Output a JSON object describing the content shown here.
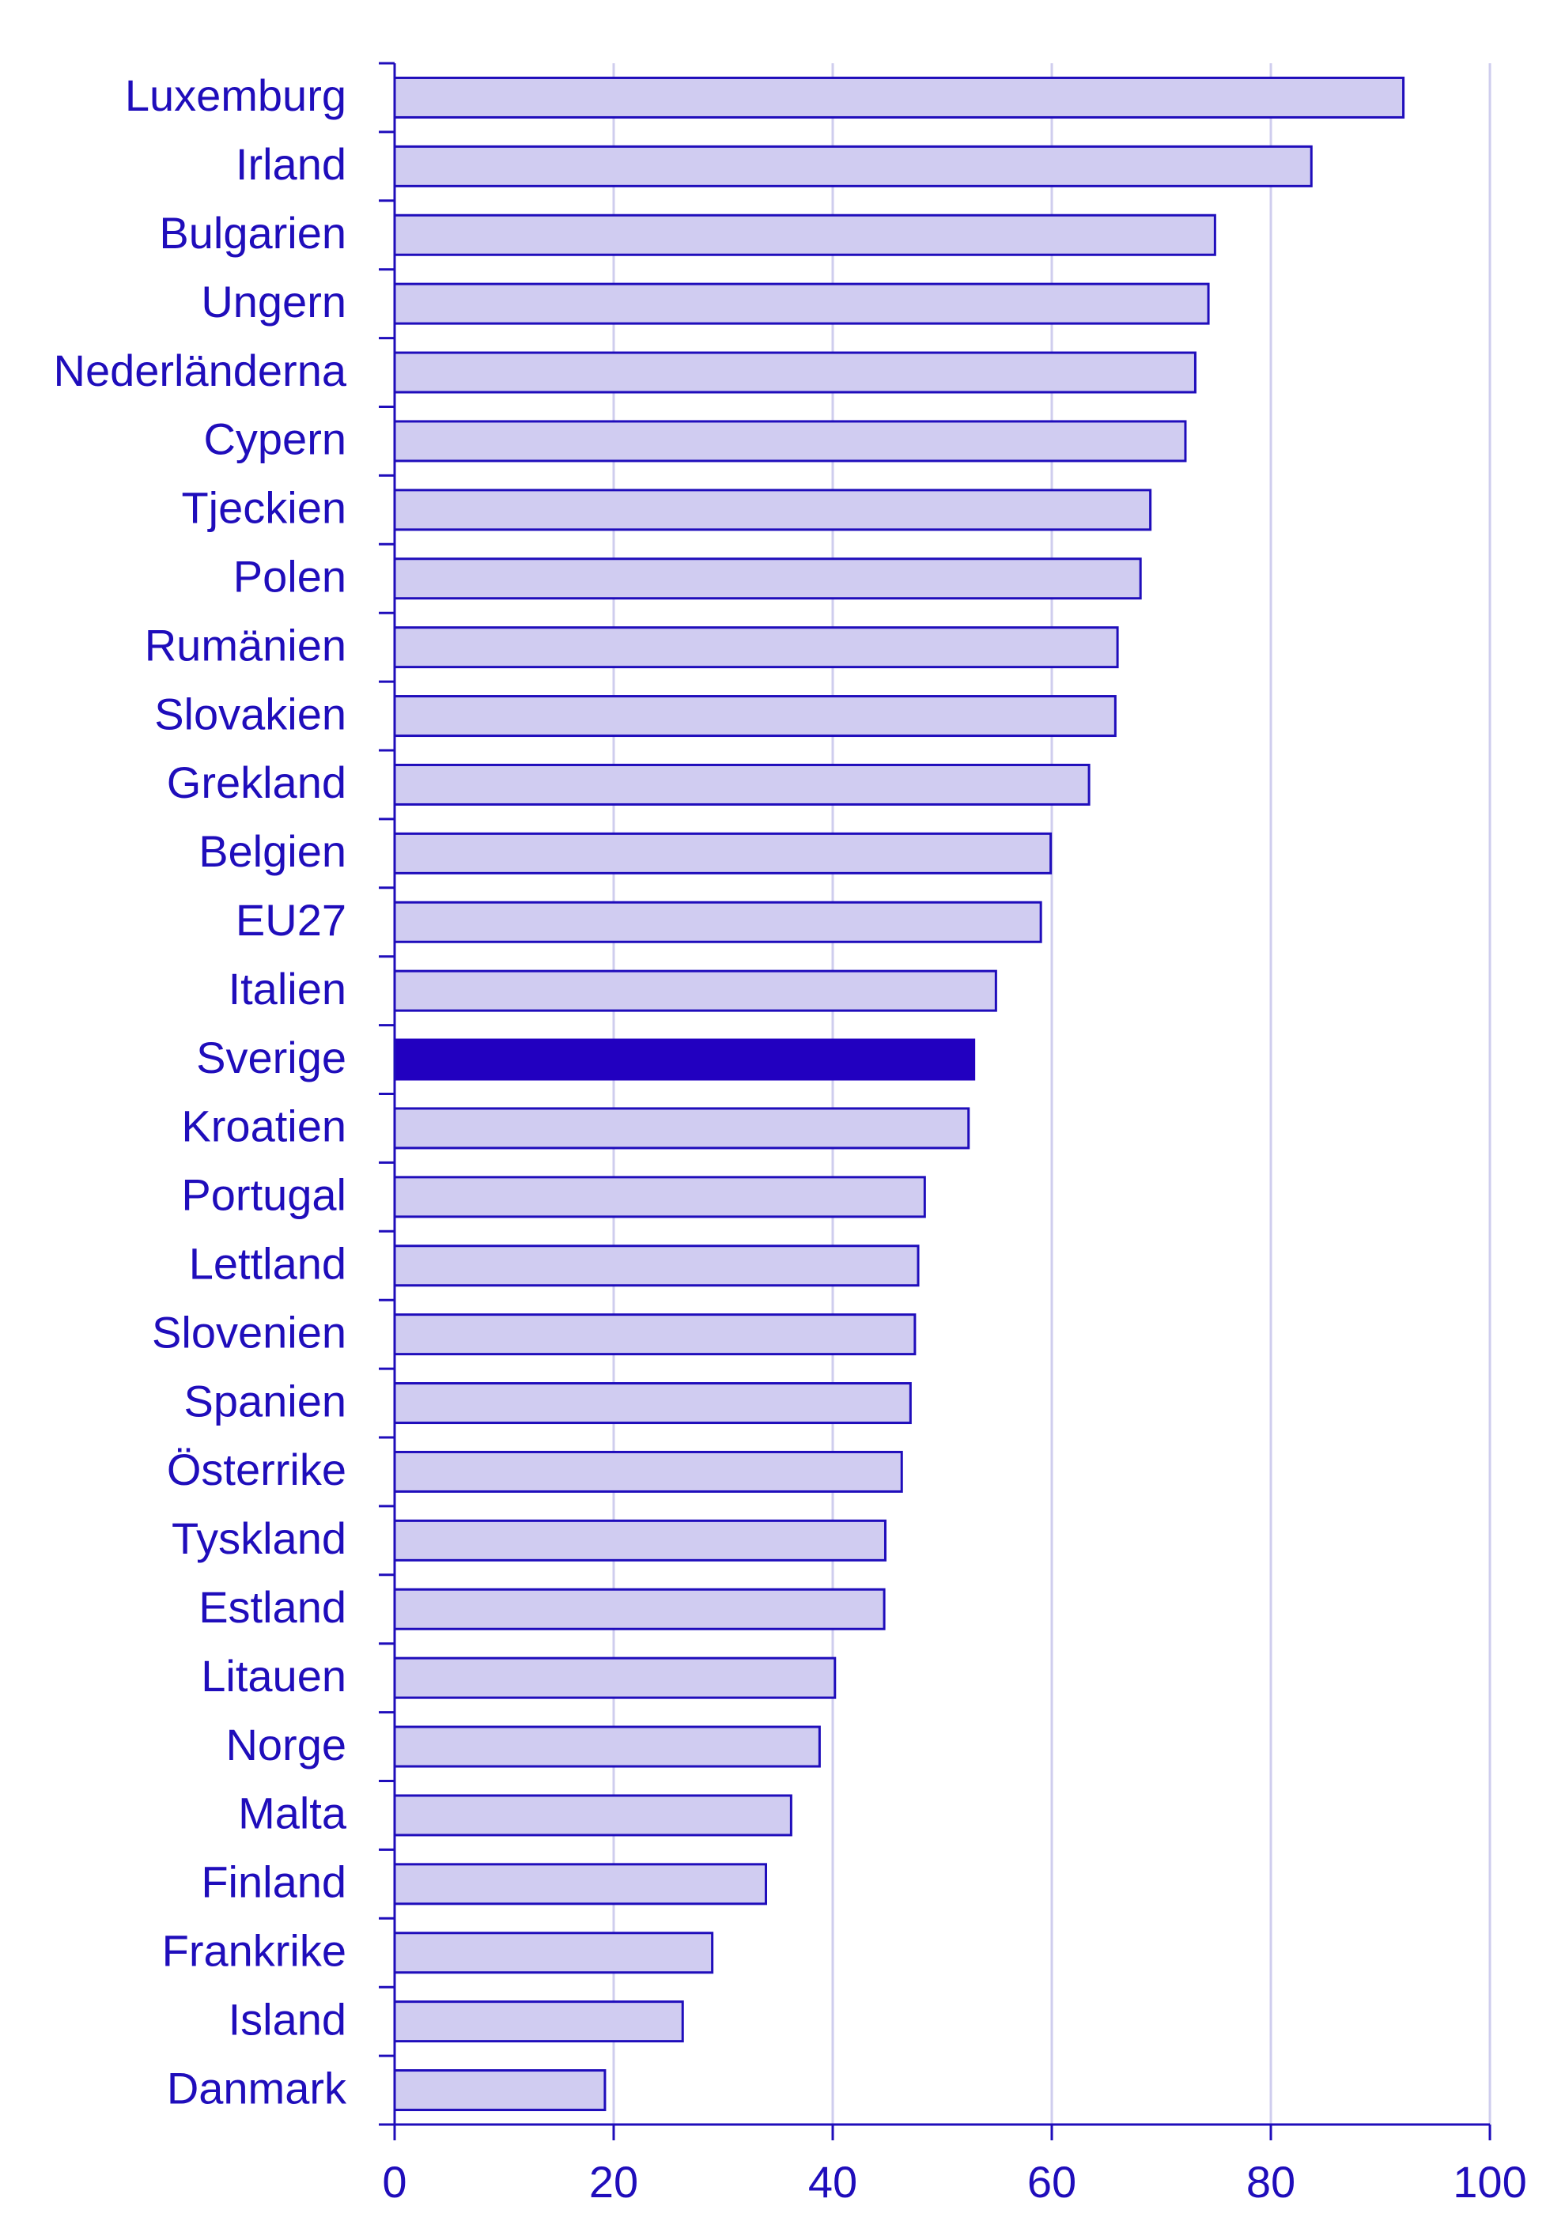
{
  "chart_data": {
    "type": "bar",
    "orientation": "horizontal",
    "categories": [
      "Luxemburg",
      "Irland",
      "Bulgarien",
      "Ungern",
      "Nederländerna",
      "Cypern",
      "Tjeckien",
      "Polen",
      "Rumänien",
      "Slovakien",
      "Grekland",
      "Belgien",
      "EU27",
      "Italien",
      "Sverige",
      "Kroatien",
      "Portugal",
      "Lettland",
      "Slovenien",
      "Spanien",
      "Österrike",
      "Tyskland",
      "Estland",
      "Litauen",
      "Norge",
      "Malta",
      "Finland",
      "Frankrike",
      "Island",
      "Danmark"
    ],
    "values": [
      92.1,
      83.7,
      74.9,
      74.3,
      73.1,
      72.2,
      69.0,
      68.1,
      66.0,
      65.8,
      63.4,
      59.9,
      59.0,
      54.9,
      52.9,
      52.4,
      48.4,
      47.8,
      47.5,
      47.1,
      46.3,
      44.8,
      44.7,
      40.2,
      38.8,
      36.2,
      33.9,
      29.0,
      26.3,
      19.2
    ],
    "highlight": "Sverige",
    "xlim": [
      0,
      100
    ],
    "xticks": [
      0,
      20,
      40,
      60,
      80,
      100
    ],
    "grid": true,
    "colors": {
      "bar_fill": "#d0ccf1",
      "bar_stroke": "#1f0dbb",
      "highlight_fill": "#2200c0",
      "text": "#1f0dbb",
      "grid": "#cfcdee",
      "axis": "#1f0dbb"
    }
  }
}
